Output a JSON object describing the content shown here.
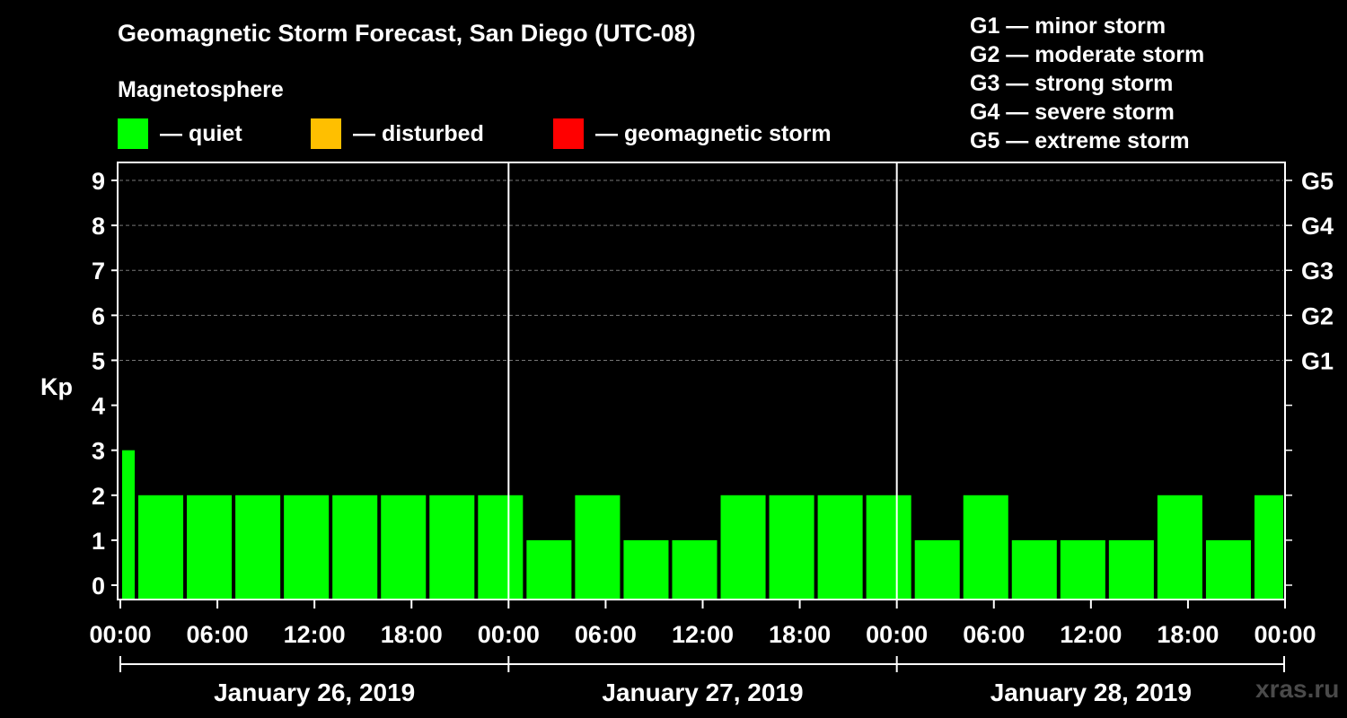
{
  "chart_data": {
    "type": "bar",
    "title": "Geomagnetic Storm Forecast, San Diego (UTC-08)",
    "subtitle": "Magnetosphere",
    "ylabel": "Kp",
    "ylim": [
      0,
      9
    ],
    "y_ticks": [
      "0",
      "1",
      "2",
      "3",
      "4",
      "5",
      "6",
      "7",
      "8",
      "9"
    ],
    "right_axis_labels": [
      {
        "kp": 5,
        "label": "G1"
      },
      {
        "kp": 6,
        "label": "G2"
      },
      {
        "kp": 7,
        "label": "G3"
      },
      {
        "kp": 8,
        "label": "G4"
      },
      {
        "kp": 9,
        "label": "G5"
      }
    ],
    "x_tick_labels": [
      "00:00",
      "06:00",
      "12:00",
      "18:00",
      "00:00",
      "06:00",
      "12:00",
      "18:00",
      "00:00",
      "06:00",
      "12:00",
      "18:00",
      "00:00"
    ],
    "x_range_hours": [
      0,
      72
    ],
    "day_boundaries_hours": [
      24,
      48
    ],
    "days": [
      "January 26, 2019",
      "January 27, 2019",
      "January 28, 2019"
    ],
    "bars": [
      {
        "start": 0,
        "end": 1,
        "kp": 3
      },
      {
        "start": 1,
        "end": 4,
        "kp": 2
      },
      {
        "start": 4,
        "end": 7,
        "kp": 2
      },
      {
        "start": 7,
        "end": 10,
        "kp": 2
      },
      {
        "start": 10,
        "end": 13,
        "kp": 2
      },
      {
        "start": 13,
        "end": 16,
        "kp": 2
      },
      {
        "start": 16,
        "end": 19,
        "kp": 2
      },
      {
        "start": 19,
        "end": 22,
        "kp": 2
      },
      {
        "start": 22,
        "end": 25,
        "kp": 2
      },
      {
        "start": 25,
        "end": 28,
        "kp": 1
      },
      {
        "start": 28,
        "end": 31,
        "kp": 2
      },
      {
        "start": 31,
        "end": 34,
        "kp": 1
      },
      {
        "start": 34,
        "end": 37,
        "kp": 1
      },
      {
        "start": 37,
        "end": 40,
        "kp": 2
      },
      {
        "start": 40,
        "end": 43,
        "kp": 2
      },
      {
        "start": 43,
        "end": 46,
        "kp": 2
      },
      {
        "start": 46,
        "end": 49,
        "kp": 2
      },
      {
        "start": 49,
        "end": 52,
        "kp": 1
      },
      {
        "start": 52,
        "end": 55,
        "kp": 2
      },
      {
        "start": 55,
        "end": 58,
        "kp": 1
      },
      {
        "start": 58,
        "end": 61,
        "kp": 1
      },
      {
        "start": 61,
        "end": 64,
        "kp": 1
      },
      {
        "start": 64,
        "end": 67,
        "kp": 2
      },
      {
        "start": 67,
        "end": 70,
        "kp": 1
      },
      {
        "start": 70,
        "end": 72,
        "kp": 2
      }
    ]
  },
  "legend": {
    "items": [
      {
        "label": "— quiet",
        "color": "#00ff00"
      },
      {
        "label": "— disturbed",
        "color": "#ffbf00"
      },
      {
        "label": "— geomagnetic storm",
        "color": "#ff0000"
      }
    ],
    "g_scale": [
      "G1 — minor storm",
      "G2 — moderate storm",
      "G3 — strong storm",
      "G4 — severe storm",
      "G5 — extreme storm"
    ]
  },
  "colors": {
    "quiet": "#00ff00",
    "disturbed": "#ffbf00",
    "storm": "#ff0000",
    "grid": "#777777"
  },
  "watermark": "xras.ru"
}
